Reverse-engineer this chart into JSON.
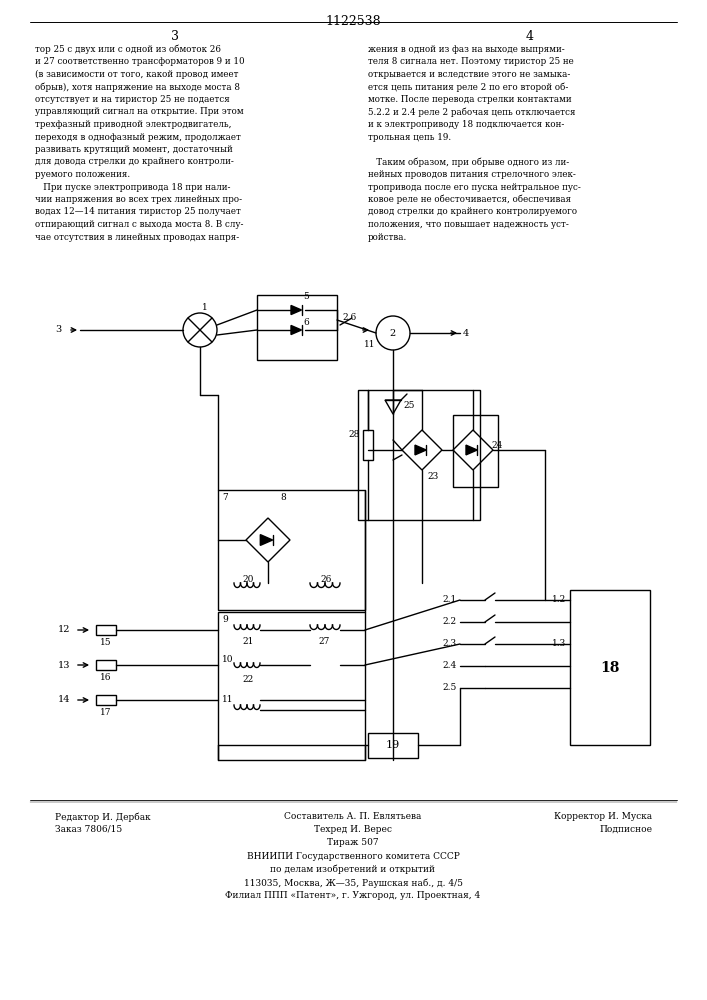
{
  "patent_number": "1122538",
  "page_left": "3",
  "page_right": "4",
  "text_col1": [
    "тор 25 с двух или с одной из обмоток 26",
    "и 27 соответственно трансформаторов 9 и 10",
    "(в зависимости от того, какой провод имеет",
    "обрыв), хотя напряжение на выходе моста 8",
    "отсутствует и на тиристор 25 не подается",
    "управляющий сигнал на открытие. При этом",
    "трехфазный приводной электродвигатель,",
    "переходя в однофазный режим, продолжает",
    "развивать крутящий момент, достаточный",
    "для довода стрелки до крайнего контроли-",
    "руемого положения.",
    "   При пуске электропривода 18 при нали-",
    "чии напряжения во всех трех линейных про-",
    "водах 12—14 питания тиристор 25 получает",
    "отпирающий сигнал с выхода моста 8. В слу-",
    "чае отсутствия в линейных проводах напря-"
  ],
  "text_col2": [
    "жения в одной из фаз на выходе выпрями-",
    "теля 8 сигнала нет. Поэтому тиристор 25 не",
    "открывается и вследствие этого не замыка-",
    "ется цепь питания реле 2 по его второй об-",
    "мотке. После перевода стрелки контактами",
    "5.2.2 и 2.4 реле 2 рабочая цепь отключается",
    "и к электроприводу 18 подключается кон-",
    "трольная цепь 19.",
    "",
    "   Таким образом, при обрыве одного из ли-",
    "нейных проводов питания стрелочного элек-",
    "тропривода после его пуска нейтральное пус-",
    "ковое реле не обесточивается, обеспечивая",
    "довод стрелки до крайнего контролируемого",
    "положения, что повышает надежность уст-",
    "ройства."
  ],
  "footer_left1": "Редактор И. Дербак",
  "footer_center1": "Составитель А. П. Евлятьева",
  "footer_right1": "Корректор И. Муска",
  "footer_left2": "Заказ 7806/15",
  "footer_center2": "Техред И. Верес",
  "footer_right2": "Подписное",
  "footer_center3": "Тираж 507",
  "footer_org1": "ВНИИПИ Государственного комитета СССР",
  "footer_org2": "по делам изобретений и открытий",
  "footer_org3": "113035, Москва, Ж—35, Раушская наб., д. 4/5",
  "footer_org4": "Филиал ППП «Патент», г. Ужгород, ул. Проектная, 4",
  "bg_color": "#ffffff",
  "text_color": "#000000",
  "line_color": "#000000"
}
